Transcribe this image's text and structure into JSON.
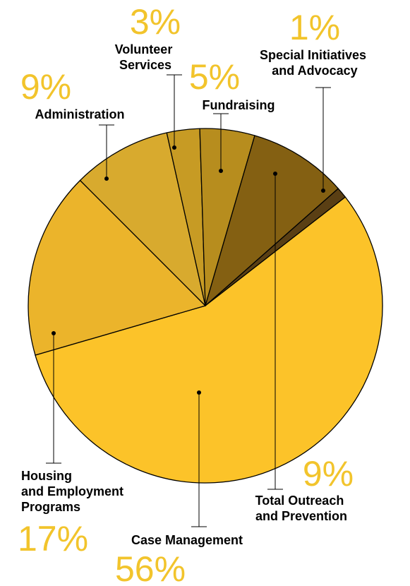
{
  "chart_data": {
    "type": "pie",
    "title": "",
    "slices": [
      {
        "label_lines": [
          "Special Initiatives",
          "and Advocacy"
        ],
        "value": 1,
        "value_label": "1%",
        "color": "#5a3f14"
      },
      {
        "label_lines": [
          "Case Management"
        ],
        "value": 56,
        "value_label": "56%",
        "color": "#fcc329"
      },
      {
        "label_lines": [
          "Housing",
          "and Employment",
          "Programs"
        ],
        "value": 17,
        "value_label": "17%",
        "color": "#ebb42b"
      },
      {
        "label_lines": [
          "Administration"
        ],
        "value": 9,
        "value_label": "9%",
        "color": "#d8aa2e"
      },
      {
        "label_lines": [
          "Volunteer",
          "Services"
        ],
        "value": 3,
        "value_label": "3%",
        "color": "#c79b24"
      },
      {
        "label_lines": [
          "Fundraising"
        ],
        "value": 5,
        "value_label": "5%",
        "color": "#b78d1e"
      },
      {
        "label_lines": [
          "Total Outreach",
          "and Prevention"
        ],
        "value": 9,
        "value_label": "9%",
        "color": "#846012"
      }
    ],
    "pct_color": "#f2c42c",
    "outline_color": "#000000"
  }
}
